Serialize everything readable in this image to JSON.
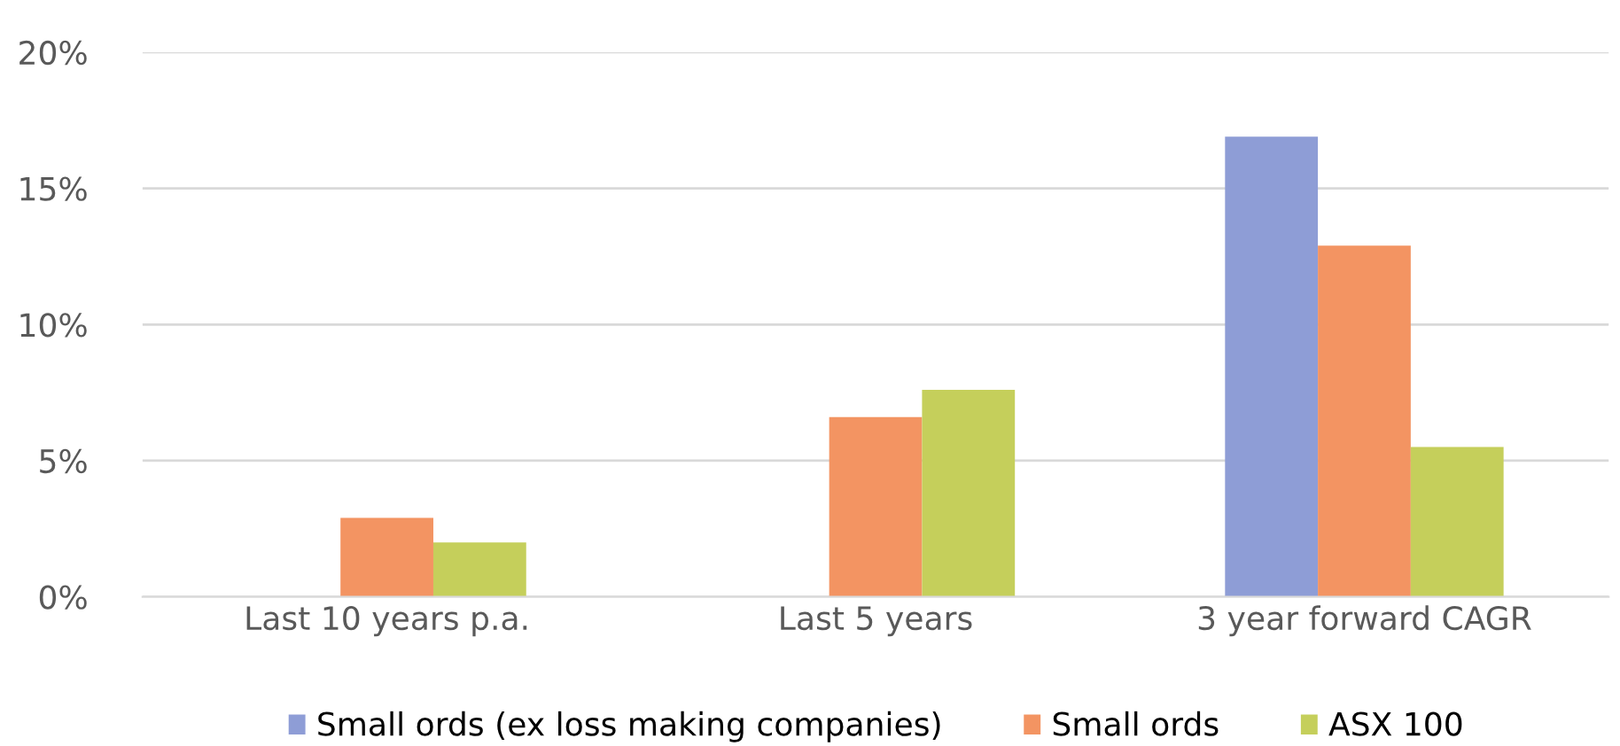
{
  "chart_data": {
    "type": "bar",
    "categories": [
      "Last 10 years p.a.",
      "Last 5 years",
      "3 year forward CAGR"
    ],
    "series": [
      {
        "name": "Small ords (ex loss making companies)",
        "color": "#8e9dd6",
        "values": [
          null,
          null,
          16.9
        ]
      },
      {
        "name": "Small ords",
        "color": "#f39462",
        "values": [
          2.9,
          6.6,
          12.9
        ]
      },
      {
        "name": "ASX 100",
        "color": "#c5cf5b",
        "values": [
          2.0,
          7.6,
          5.5
        ]
      }
    ],
    "ylim": [
      0,
      20
    ],
    "yticks": [
      {
        "value": 0,
        "label": "0%"
      },
      {
        "value": 5,
        "label": "5%"
      },
      {
        "value": 10,
        "label": "10%"
      },
      {
        "value": 15,
        "label": "15%"
      },
      {
        "value": 20,
        "label": "20%"
      }
    ],
    "grid": "y",
    "legend": "bottom"
  }
}
